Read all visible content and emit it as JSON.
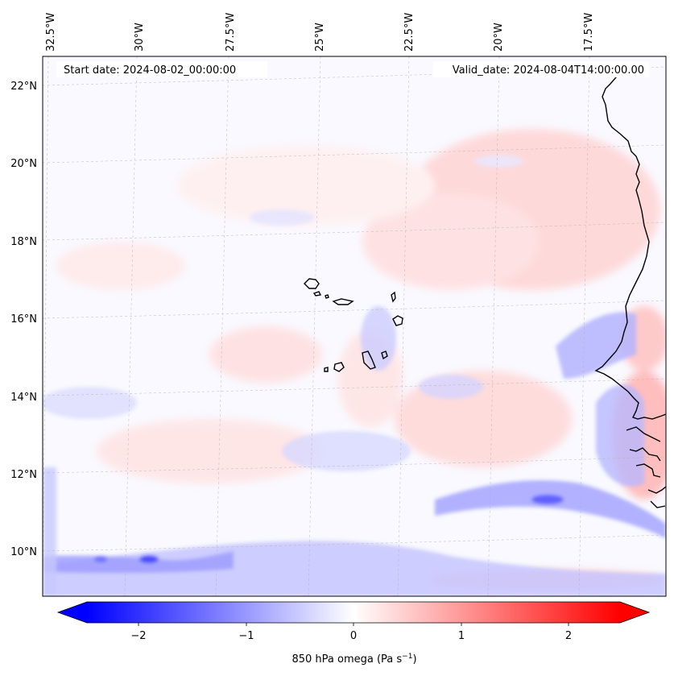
{
  "map": {
    "start_date": "Start date: 2024-08-02_00:00:00",
    "valid_date": "Valid_date: 2024-08-04T14:00:00.00",
    "lon_labels": [
      "32.5°W",
      "30°W",
      "27.5°W",
      "25°W",
      "22.5°W",
      "20°W",
      "17.5°W"
    ],
    "lat_labels": [
      "22°N",
      "20°N",
      "18°N",
      "16°N",
      "14°N",
      "12°N",
      "10°N"
    ],
    "field": "850 hPa omega",
    "region": "Cabo Verde and West African coast"
  },
  "colorbar": {
    "label_main": "850 hPa omega (Pa s",
    "label_exp": "−1",
    "label_close": ")",
    "ticks": [
      "−2",
      "−1",
      "0",
      "1",
      "2"
    ],
    "min": -2.7,
    "max": 2.7,
    "colors": {
      "negative": "#0000ff",
      "zero": "#ffffff",
      "positive": "#ff0000"
    }
  }
}
